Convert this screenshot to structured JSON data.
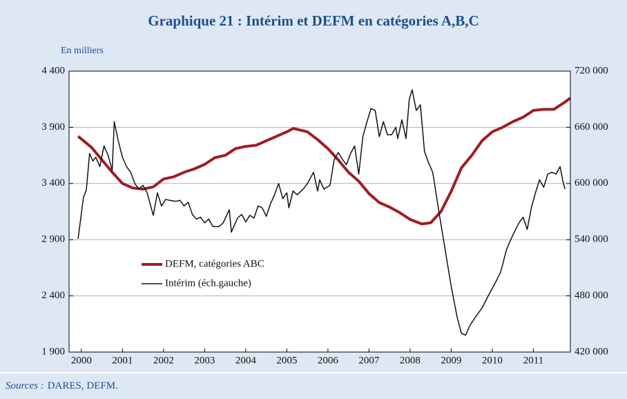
{
  "chart_data": {
    "type": "line",
    "title": "Graphique 21 : Intérim et DEFM en catégories A,B,C",
    "unit_label": "En milliers",
    "source_label": "Sources :",
    "source": "DARES, DEFM.",
    "xlim": [
      1999.7,
      2011.9
    ],
    "xticks": [
      2000,
      2001,
      2002,
      2003,
      2004,
      2005,
      2006,
      2007,
      2008,
      2009,
      2010,
      2011
    ],
    "ylim": [
      1900,
      4400
    ],
    "yticks": [
      {
        "value": 1900,
        "label": "1 900"
      },
      {
        "value": 2400,
        "label": "2 400"
      },
      {
        "value": 2900,
        "label": "2 900"
      },
      {
        "value": 3400,
        "label": "3 400"
      },
      {
        "value": 3900,
        "label": "3 900"
      },
      {
        "value": 4400,
        "label": "4 400"
      }
    ],
    "y2lim": [
      420000,
      720000
    ],
    "y2ticks": [
      {
        "value": 420000,
        "label": "420 000"
      },
      {
        "value": 480000,
        "label": "480 000"
      },
      {
        "value": 540000,
        "label": "540 000"
      },
      {
        "value": 600000,
        "label": "600 000"
      },
      {
        "value": 660000,
        "label": "660 000"
      },
      {
        "value": 720000,
        "label": "720 000"
      }
    ],
    "grid": true,
    "series": [
      {
        "name": "DEFM, catégories ABC",
        "color": "#a01c22",
        "width": 4,
        "x": [
          1999.92,
          2000.25,
          2000.5,
          2000.75,
          2001.0,
          2001.25,
          2001.5,
          2001.75,
          2002.0,
          2002.25,
          2002.5,
          2002.75,
          2003.0,
          2003.25,
          2003.5,
          2003.75,
          2004.0,
          2004.25,
          2004.5,
          2004.75,
          2005.0,
          2005.16,
          2005.5,
          2005.75,
          2006.0,
          2006.25,
          2006.5,
          2006.75,
          2007.0,
          2007.25,
          2007.5,
          2007.75,
          2008.0,
          2008.28,
          2008.5,
          2008.75,
          2009.0,
          2009.25,
          2009.5,
          2009.75,
          2010.0,
          2010.25,
          2010.5,
          2010.75,
          2011.0,
          2011.25,
          2011.5,
          2011.75,
          2011.9
        ],
        "values": [
          3820,
          3720,
          3610,
          3500,
          3400,
          3360,
          3350,
          3370,
          3440,
          3460,
          3500,
          3530,
          3570,
          3630,
          3650,
          3710,
          3730,
          3740,
          3780,
          3820,
          3860,
          3890,
          3860,
          3790,
          3710,
          3610,
          3500,
          3420,
          3310,
          3230,
          3190,
          3140,
          3080,
          3040,
          3050,
          3150,
          3330,
          3540,
          3650,
          3780,
          3860,
          3900,
          3950,
          3990,
          4050,
          4060,
          4060,
          4120,
          4160
        ]
      },
      {
        "name": "Intérim (éch.gauche)",
        "color": "#111111",
        "width": 1.5,
        "axis": "y2",
        "x": [
          1999.92,
          2000.05,
          2000.12,
          2000.2,
          2000.28,
          2000.35,
          2000.45,
          2000.55,
          2000.65,
          2000.75,
          2000.8,
          2000.9,
          2001.0,
          2001.1,
          2001.2,
          2001.3,
          2001.4,
          2001.5,
          2001.6,
          2001.7,
          2001.75,
          2001.85,
          2001.95,
          2002.05,
          2002.15,
          2002.3,
          2002.4,
          2002.5,
          2002.6,
          2002.7,
          2002.8,
          2002.9,
          2003.0,
          2003.1,
          2003.2,
          2003.35,
          2003.45,
          2003.6,
          2003.65,
          2003.8,
          2003.9,
          2004.0,
          2004.1,
          2004.2,
          2004.3,
          2004.4,
          2004.5,
          2004.6,
          2004.7,
          2004.8,
          2004.9,
          2005.0,
          2005.05,
          2005.15,
          2005.25,
          2005.4,
          2005.5,
          2005.65,
          2005.75,
          2005.8,
          2005.9,
          2006.05,
          2006.15,
          2006.25,
          2006.35,
          2006.45,
          2006.55,
          2006.65,
          2006.75,
          2006.85,
          2006.95,
          2007.05,
          2007.15,
          2007.25,
          2007.35,
          2007.45,
          2007.55,
          2007.65,
          2007.7,
          2007.8,
          2007.9,
          2007.98,
          2008.05,
          2008.15,
          2008.25,
          2008.35,
          2008.45,
          2008.55,
          2008.7,
          2008.85,
          2009.0,
          2009.15,
          2009.25,
          2009.35,
          2009.45,
          2009.6,
          2009.75,
          2009.9,
          2010.05,
          2010.2,
          2010.35,
          2010.5,
          2010.65,
          2010.75,
          2010.85,
          2010.95,
          2011.05,
          2011.15,
          2011.25,
          2011.35,
          2011.45,
          2011.55,
          2011.65,
          2011.72,
          2011.77
        ],
        "values": [
          541000,
          585000,
          593000,
          632000,
          624000,
          628000,
          618000,
          640000,
          630000,
          614000,
          666000,
          645000,
          628000,
          618000,
          612000,
          600000,
          594000,
          598000,
          590000,
          574000,
          566000,
          590000,
          576000,
          583000,
          582000,
          581000,
          582000,
          576000,
          580000,
          567000,
          562000,
          564000,
          558000,
          562000,
          554000,
          554000,
          558000,
          572000,
          548000,
          563000,
          567000,
          559000,
          566000,
          563000,
          576000,
          574000,
          565000,
          578000,
          588000,
          600000,
          584000,
          590000,
          574000,
          592000,
          588000,
          594000,
          600000,
          612000,
          592000,
          604000,
          594000,
          598000,
          625000,
          633000,
          626000,
          620000,
          632000,
          640000,
          610000,
          650000,
          666000,
          680000,
          678000,
          650000,
          666000,
          652000,
          652000,
          660000,
          648000,
          668000,
          648000,
          690000,
          700000,
          678000,
          684000,
          634000,
          622000,
          612000,
          570000,
          530000,
          490000,
          456000,
          440000,
          438000,
          448000,
          458000,
          467000,
          480000,
          492000,
          505000,
          530000,
          545000,
          558000,
          564000,
          551000,
          574000,
          590000,
          604000,
          596000,
          610000,
          612000,
          610000,
          618000,
          602000,
          594000
        ]
      }
    ]
  }
}
